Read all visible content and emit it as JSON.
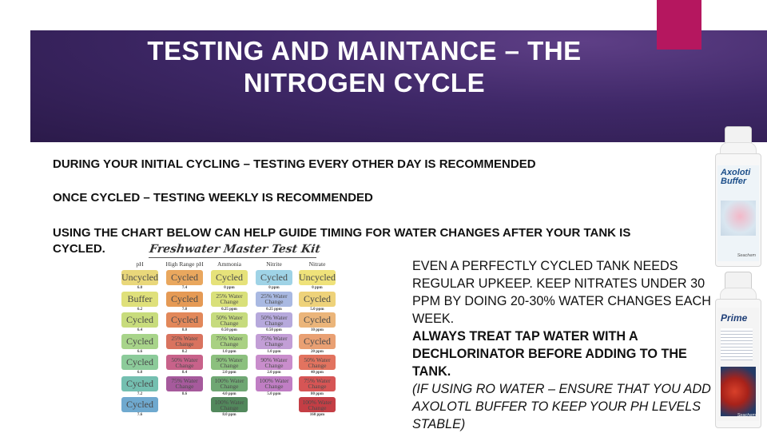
{
  "slide": {
    "title_line1": "TESTING AND MAINTANCE – THE",
    "title_line2": "NITROGEN CYCLE",
    "line1": "DURING YOUR INITIAL CYCLING – TESTING EVERY OTHER DAY IS RECOMMENDED",
    "line2": "ONCE CYCLED – TESTING WEEKLY IS RECOMMENDED",
    "line3a": "USING THE CHART BELOW CAN HELP GUIDE TIMING FOR WATER CHANGES AFTER YOUR TANK IS",
    "line3b": "CYCLED.",
    "note_plain": "EVEN A PERFECTLY CYCLED TANK NEEDS REGULAR UPKEEP.  KEEP NITRATES UNDER 30 PPM BY DOING 20-30% WATER CHANGES EACH WEEK.",
    "note_bold": "ALWAYS TREAT TAP WATER WITH A DECHLORINATOR BEFORE ADDING TO THE TANK.",
    "note_italic": "(IF USING RO WATER – ENSURE THAT YOU ADD AXOLOTL BUFFER TO KEEP YOUR PH LEVELS STABLE)"
  },
  "colors": {
    "banner": "#3f2868",
    "accent": "#b5175f"
  },
  "kit": {
    "title": "Freshwater Master Test Kit",
    "columns": [
      {
        "header": "pH",
        "cells": [
          {
            "label": "Uncycled",
            "value": "6.0",
            "color": "#e9d77a"
          },
          {
            "label": "Buffer",
            "value": "6.2",
            "color": "#dfe07a"
          },
          {
            "label": "Cycled",
            "value": "6.4",
            "color": "#c8dc7c"
          },
          {
            "label": "Cycled",
            "value": "6.6",
            "color": "#a8d48a"
          },
          {
            "label": "Cycled",
            "value": "6.8",
            "color": "#8ccb9a"
          },
          {
            "label": "Cycled",
            "value": "7.2",
            "color": "#74bfb0"
          },
          {
            "label": "Cycled",
            "value": "7.6",
            "color": "#6fa9cf"
          }
        ]
      },
      {
        "header": "High Range pH",
        "cells": [
          {
            "label": "Cycled",
            "value": "7.4",
            "color": "#e9a75e"
          },
          {
            "label": "Cycled",
            "value": "7.8",
            "color": "#e59a55"
          },
          {
            "label": "Cycled",
            "value": "8.0",
            "color": "#e2885a"
          },
          {
            "label": "25% Water Change",
            "value": "8.2",
            "color": "#d9735f"
          },
          {
            "label": "50% Water Change",
            "value": "8.4",
            "color": "#c8628a"
          },
          {
            "label": "75% Water Change",
            "value": "8.6",
            "color": "#a65a9c"
          }
        ]
      },
      {
        "header": "Ammonia",
        "cells": [
          {
            "label": "Cycled",
            "value": "0 ppm",
            "color": "#e6e27a"
          },
          {
            "label": "25% Water Change",
            "value": "0.25 ppm",
            "color": "#d9e07a"
          },
          {
            "label": "50% Water Change",
            "value": "0.50 ppm",
            "color": "#c6db7e"
          },
          {
            "label": "75% Water Change",
            "value": "1.0 ppm",
            "color": "#a9d182"
          },
          {
            "label": "90% Water Change",
            "value": "2.0 ppm",
            "color": "#8cc07e"
          },
          {
            "label": "100% Water Change",
            "value": "4.0 ppm",
            "color": "#6fa773"
          },
          {
            "label": "100% Water Change",
            "value": "8.0 ppm",
            "color": "#52885c"
          }
        ]
      },
      {
        "header": "Nitrite",
        "cells": [
          {
            "label": "Cycled",
            "value": "0 ppm",
            "color": "#9fd3e6"
          },
          {
            "label": "25% Water Change",
            "value": "0.25 ppm",
            "color": "#a9b9e2"
          },
          {
            "label": "50% Water Change",
            "value": "0.50 ppm",
            "color": "#b6a9dc"
          },
          {
            "label": "75% Water Change",
            "value": "1.0 ppm",
            "color": "#c29ed6"
          },
          {
            "label": "90% Water Change",
            "value": "2.0 ppm",
            "color": "#c98dcc"
          },
          {
            "label": "100% Water Change",
            "value": "5.0 ppm",
            "color": "#c07ec4"
          }
        ]
      },
      {
        "header": "Nitrate",
        "cells": [
          {
            "label": "Uncycled",
            "value": "0 ppm",
            "color": "#efe27a"
          },
          {
            "label": "Cycled",
            "value": "5.0 ppm",
            "color": "#eed27a"
          },
          {
            "label": "Cycled",
            "value": "10 ppm",
            "color": "#ebb57a"
          },
          {
            "label": "Cycled",
            "value": "20 ppm",
            "color": "#e9a073"
          },
          {
            "label": "50% Water Change",
            "value": "40 ppm",
            "color": "#e2735f"
          },
          {
            "label": "75% Water Change",
            "value": "80 ppm",
            "color": "#d65555"
          },
          {
            "label": "100% Water Change",
            "value": "160 ppm",
            "color": "#c43e45"
          }
        ]
      }
    ]
  },
  "bottles": {
    "buffer_name": "Axoloti Buffer",
    "buffer_brand": "Seachem",
    "prime_name": "Prime",
    "prime_brand": "Seachem"
  }
}
